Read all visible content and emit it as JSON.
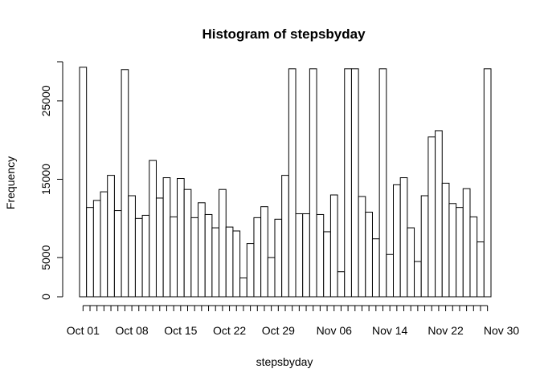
{
  "chart_data": {
    "type": "bar",
    "title": "Histogram of stepsbyday",
    "xlabel": "stepsbyday",
    "ylabel": "Frequency",
    "ylim": [
      0,
      30000
    ],
    "y_ticks": [
      0,
      5000,
      15000,
      25000
    ],
    "y_axis_max_tick": 30000,
    "x_tick_labels": [
      {
        "label": "Oct 01",
        "index": 0
      },
      {
        "label": "Oct 08",
        "index": 7
      },
      {
        "label": "Oct 15",
        "index": 14
      },
      {
        "label": "Oct 22",
        "index": 21
      },
      {
        "label": "Oct 29",
        "index": 28
      },
      {
        "label": "Nov 06",
        "index": 36
      },
      {
        "label": "Nov 14",
        "index": 44
      },
      {
        "label": "Nov 22",
        "index": 52
      },
      {
        "label": "Nov 30",
        "index": 60
      }
    ],
    "values": [
      29300,
      11400,
      12300,
      13400,
      15500,
      11000,
      29000,
      12900,
      10000,
      10400,
      17400,
      12600,
      15200,
      10200,
      15100,
      13700,
      10100,
      12000,
      10500,
      8800,
      13700,
      8900,
      8400,
      2400,
      6800,
      10100,
      11500,
      5000,
      9900,
      15500,
      29100,
      10600,
      10600,
      29100,
      10500,
      8300,
      13000,
      3200,
      29100,
      29100,
      12800,
      10800,
      7400,
      29100,
      5400,
      14300,
      15200,
      8800,
      4500,
      12900,
      20400,
      21200,
      14500,
      11900,
      11400,
      13800,
      10200,
      7000,
      29100
    ],
    "grid": false,
    "legend": "none",
    "colors": {
      "bar_fill": "#ffffff",
      "bar_stroke": "#000000"
    }
  }
}
